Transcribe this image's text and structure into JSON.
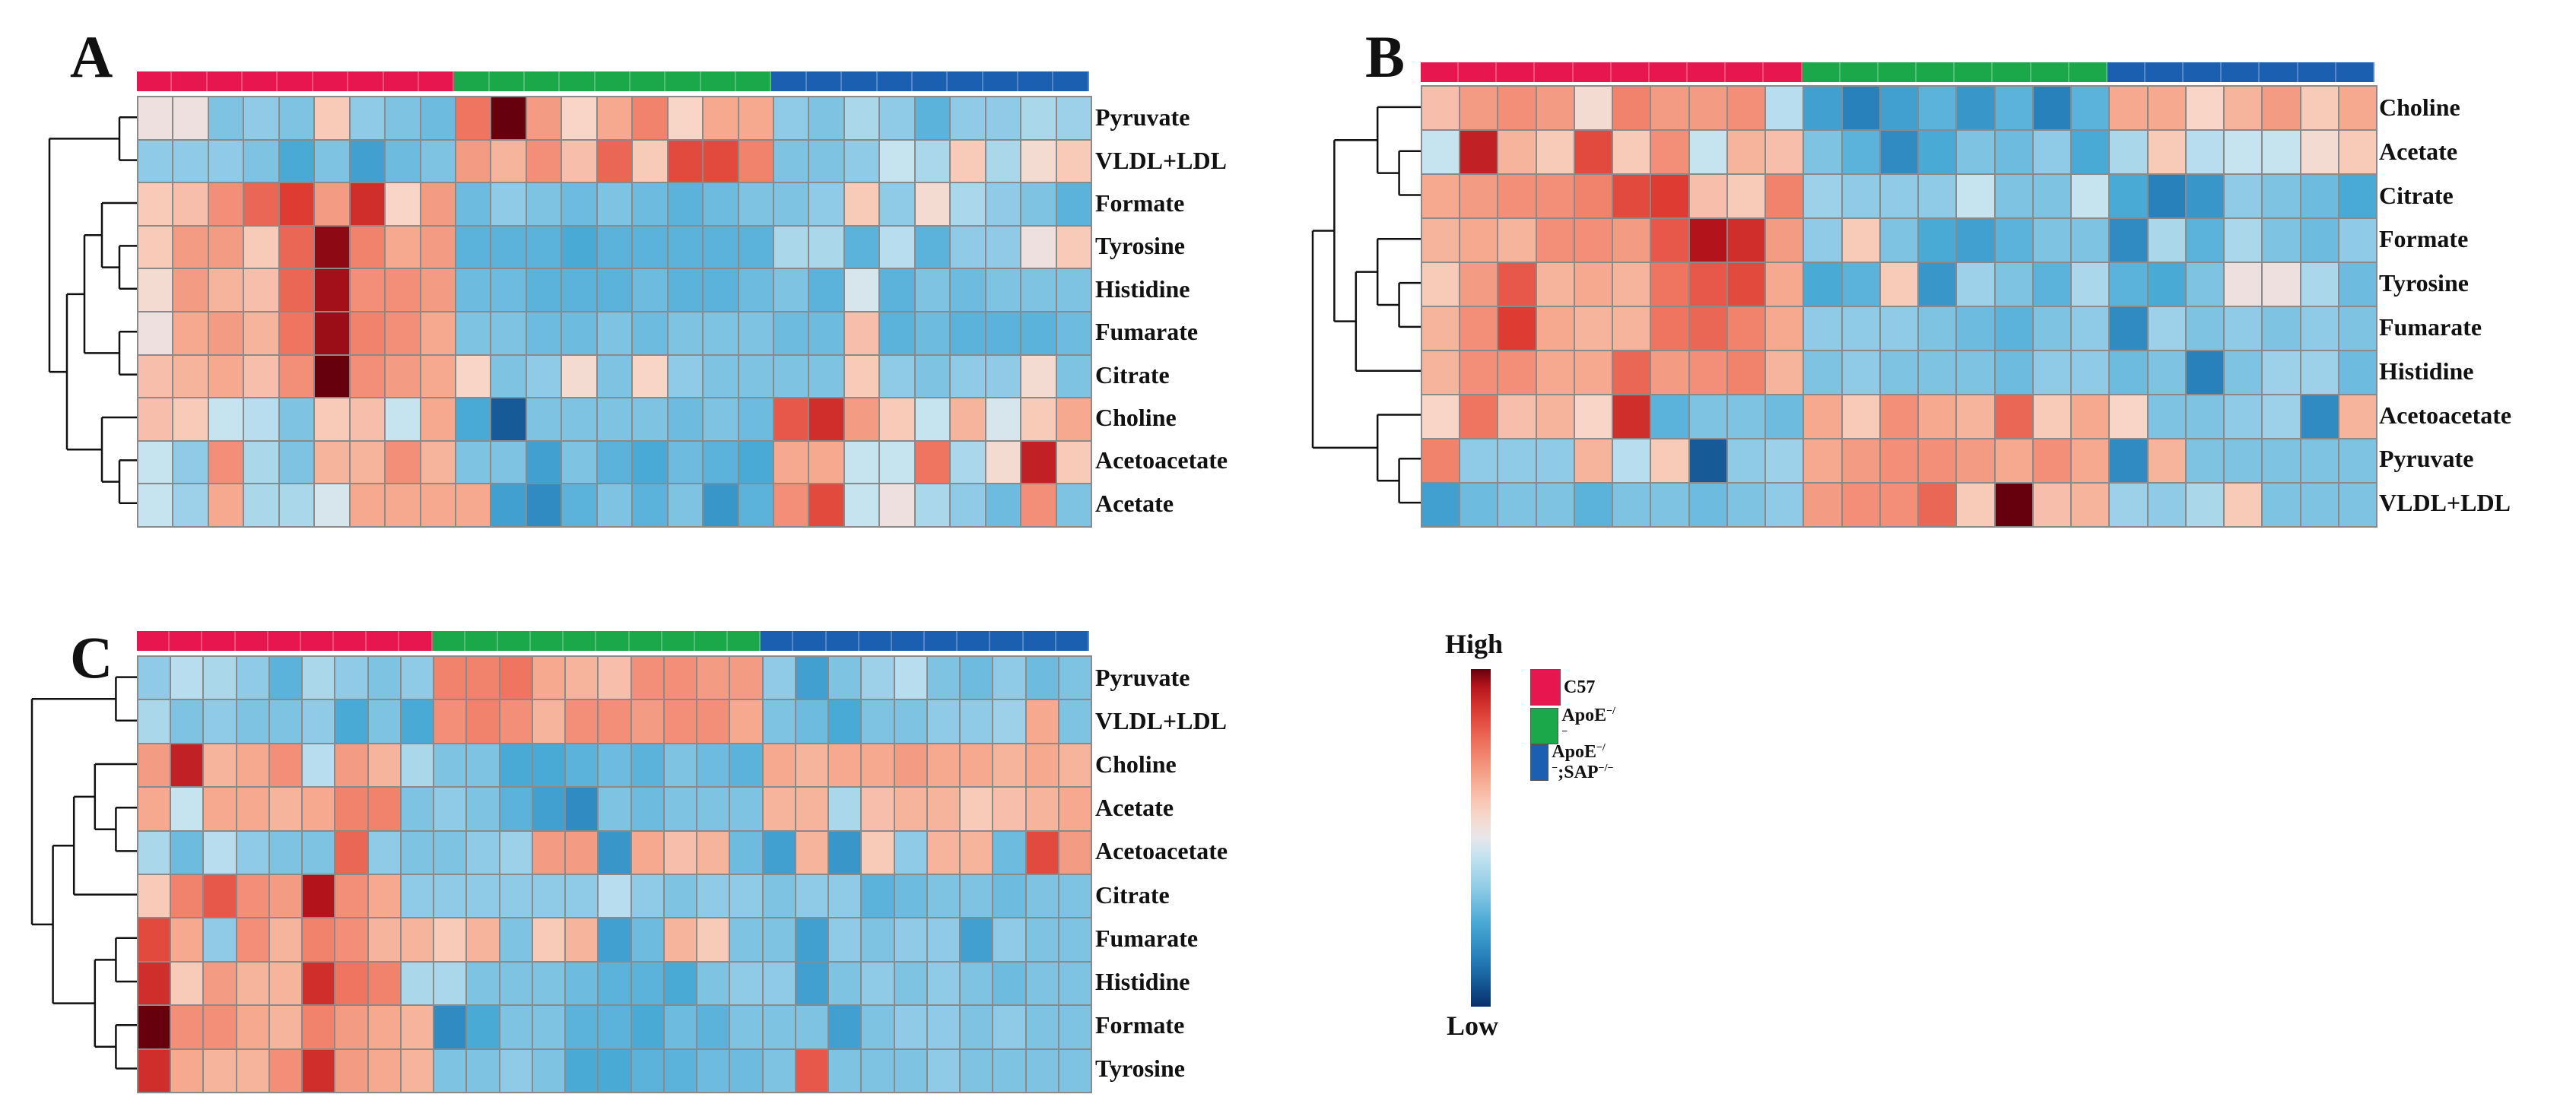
{
  "colors": {
    "C57": "#e8164f",
    "ApoE": "#1aa84a",
    "ApoE_SAP": "#1b5fb0",
    "low": "#08306b",
    "mid": "#e8e6ea",
    "high": "#67000d"
  },
  "legend": {
    "high_label": "High",
    "low_label": "Low",
    "groups": [
      {
        "key": "C57",
        "label": "C57",
        "sup": ""
      },
      {
        "key": "ApoE",
        "label": "ApoE",
        "sup": "−/−"
      },
      {
        "key": "ApoE_SAP",
        "label": "ApoE",
        "sup": "−/−",
        "label2": ";SAP",
        "sup2": "−/−"
      }
    ]
  },
  "chart_data": [
    {
      "type": "heatmap",
      "panel": "A",
      "groups": [
        {
          "key": "C57",
          "n": 9
        },
        {
          "key": "ApoE",
          "n": 9
        },
        {
          "key": "ApoE_SAP",
          "n": 9
        }
      ],
      "rows": [
        "Pyruvate",
        "VLDL+LDL",
        "Formate",
        "Tyrosine",
        "Histidine",
        "Fumarate",
        "Citrate",
        "Choline",
        "Acetoacetate",
        "Acetate"
      ],
      "values": [
        [
          0.05,
          0.05,
          -0.35,
          -0.3,
          -0.35,
          0.2,
          -0.3,
          -0.35,
          -0.4,
          0.55,
          1.0,
          0.4,
          0.15,
          0.35,
          0.5,
          0.15,
          0.35,
          0.35,
          -0.3,
          -0.35,
          -0.2,
          -0.3,
          -0.45,
          -0.3,
          -0.3,
          -0.2,
          -0.25
        ],
        [
          -0.3,
          -0.3,
          -0.3,
          -0.35,
          -0.5,
          -0.35,
          -0.55,
          -0.4,
          -0.35,
          0.4,
          0.3,
          0.45,
          0.25,
          0.6,
          0.2,
          0.7,
          0.7,
          0.5,
          -0.35,
          -0.35,
          -0.3,
          -0.1,
          -0.2,
          0.2,
          -0.2,
          0.1,
          0.2
        ],
        [
          0.2,
          0.25,
          0.45,
          0.6,
          0.75,
          0.4,
          0.8,
          0.15,
          0.4,
          -0.4,
          -0.3,
          -0.35,
          -0.4,
          -0.35,
          -0.4,
          -0.45,
          -0.4,
          -0.35,
          -0.35,
          -0.3,
          0.2,
          -0.3,
          0.1,
          -0.2,
          -0.3,
          -0.35,
          -0.45
        ],
        [
          0.2,
          0.4,
          0.4,
          0.2,
          0.6,
          0.95,
          0.5,
          0.35,
          0.4,
          -0.45,
          -0.45,
          -0.45,
          -0.5,
          -0.45,
          -0.45,
          -0.45,
          -0.45,
          -0.45,
          -0.2,
          -0.2,
          -0.45,
          -0.15,
          -0.45,
          -0.3,
          -0.3,
          0.05,
          0.2
        ],
        [
          0.1,
          0.4,
          0.3,
          0.25,
          0.6,
          0.92,
          0.45,
          0.45,
          0.4,
          -0.4,
          -0.4,
          -0.45,
          -0.45,
          -0.45,
          -0.4,
          -0.45,
          -0.45,
          -0.4,
          -0.35,
          -0.45,
          -0.05,
          -0.45,
          -0.35,
          -0.4,
          -0.35,
          -0.35,
          -0.35
        ],
        [
          0.05,
          0.35,
          0.4,
          0.3,
          0.55,
          0.93,
          0.5,
          0.45,
          0.35,
          -0.35,
          -0.35,
          -0.4,
          -0.4,
          -0.35,
          -0.4,
          -0.35,
          -0.35,
          -0.35,
          -0.4,
          -0.4,
          0.25,
          -0.45,
          -0.4,
          -0.45,
          -0.45,
          -0.45,
          -0.4
        ],
        [
          0.25,
          0.3,
          0.35,
          0.25,
          0.45,
          1.0,
          0.45,
          0.4,
          0.35,
          0.15,
          -0.35,
          -0.3,
          0.1,
          -0.35,
          0.15,
          -0.3,
          -0.35,
          -0.35,
          -0.35,
          -0.35,
          0.2,
          -0.3,
          -0.35,
          -0.3,
          -0.3,
          0.1,
          -0.35
        ],
        [
          0.25,
          0.2,
          -0.1,
          -0.15,
          -0.35,
          0.2,
          0.25,
          -0.1,
          0.35,
          -0.5,
          -0.85,
          -0.35,
          -0.35,
          -0.35,
          -0.35,
          -0.4,
          -0.35,
          -0.4,
          0.65,
          0.8,
          0.4,
          0.2,
          -0.1,
          0.3,
          -0.05,
          0.2,
          0.35
        ],
        [
          -0.1,
          -0.3,
          0.45,
          -0.2,
          -0.35,
          0.3,
          0.3,
          0.45,
          0.3,
          -0.35,
          -0.35,
          -0.55,
          -0.35,
          -0.45,
          -0.5,
          -0.4,
          -0.45,
          -0.5,
          0.35,
          0.35,
          -0.1,
          -0.1,
          0.55,
          -0.2,
          0.1,
          0.85,
          0.2
        ],
        [
          -0.1,
          -0.25,
          0.35,
          -0.2,
          -0.2,
          -0.05,
          0.35,
          0.35,
          0.35,
          0.35,
          -0.55,
          -0.65,
          -0.45,
          -0.35,
          -0.45,
          -0.35,
          -0.6,
          -0.45,
          0.45,
          0.7,
          -0.1,
          0.05,
          -0.2,
          -0.3,
          -0.4,
          0.45,
          -0.35
        ]
      ]
    },
    {
      "type": "heatmap",
      "panel": "B",
      "groups": [
        {
          "key": "C57",
          "n": 10
        },
        {
          "key": "ApoE",
          "n": 8
        },
        {
          "key": "ApoE_SAP",
          "n": 7
        }
      ],
      "rows": [
        "Choline",
        "Acetate",
        "Citrate",
        "Formate",
        "Tyrosine",
        "Fumarate",
        "Histidine",
        "Acetoacetate",
        "Pyruvate",
        "VLDL+LDL"
      ],
      "values": [
        [
          0.25,
          0.4,
          0.45,
          0.4,
          0.1,
          0.5,
          0.4,
          0.4,
          0.45,
          -0.15,
          -0.55,
          -0.7,
          -0.55,
          -0.45,
          -0.6,
          -0.45,
          -0.7,
          -0.45,
          0.35,
          0.35,
          0.15,
          0.3,
          0.4,
          0.2,
          0.35
        ],
        [
          -0.1,
          0.85,
          0.3,
          0.2,
          0.7,
          0.2,
          0.45,
          -0.1,
          0.3,
          0.25,
          -0.35,
          -0.45,
          -0.65,
          -0.5,
          -0.35,
          -0.4,
          -0.3,
          -0.5,
          -0.2,
          0.2,
          -0.15,
          -0.1,
          -0.1,
          0.1,
          0.2
        ],
        [
          0.35,
          0.4,
          0.45,
          0.45,
          0.5,
          0.7,
          0.75,
          0.25,
          0.2,
          0.5,
          -0.25,
          -0.3,
          -0.3,
          -0.3,
          -0.1,
          -0.35,
          -0.35,
          -0.1,
          -0.5,
          -0.7,
          -0.6,
          -0.3,
          -0.35,
          -0.4,
          -0.5
        ],
        [
          0.3,
          0.35,
          0.3,
          0.45,
          0.45,
          0.4,
          0.65,
          0.9,
          0.8,
          0.4,
          -0.3,
          0.2,
          -0.35,
          -0.5,
          -0.55,
          -0.45,
          -0.35,
          -0.35,
          -0.65,
          -0.2,
          -0.45,
          -0.2,
          -0.35,
          -0.4,
          -0.3
        ],
        [
          0.2,
          0.4,
          0.65,
          0.3,
          0.35,
          0.3,
          0.55,
          0.65,
          0.7,
          0.35,
          -0.5,
          -0.45,
          0.2,
          -0.6,
          -0.25,
          -0.35,
          -0.45,
          -0.2,
          -0.45,
          -0.5,
          -0.35,
          0.05,
          0.05,
          -0.2,
          -0.4
        ],
        [
          0.3,
          0.45,
          0.75,
          0.35,
          0.3,
          0.3,
          0.55,
          0.6,
          0.5,
          0.35,
          -0.3,
          -0.3,
          -0.3,
          -0.35,
          -0.4,
          -0.45,
          -0.35,
          -0.3,
          -0.65,
          -0.25,
          -0.35,
          -0.3,
          -0.35,
          -0.3,
          -0.35
        ],
        [
          0.3,
          0.45,
          0.45,
          0.35,
          0.35,
          0.6,
          0.4,
          0.45,
          0.5,
          0.3,
          -0.35,
          -0.3,
          -0.35,
          -0.35,
          -0.35,
          -0.4,
          -0.3,
          -0.3,
          -0.4,
          -0.35,
          -0.7,
          -0.35,
          -0.25,
          -0.25,
          -0.4
        ],
        [
          0.15,
          0.55,
          0.25,
          0.3,
          0.15,
          0.8,
          -0.45,
          -0.35,
          -0.35,
          -0.4,
          0.35,
          0.2,
          0.45,
          0.35,
          0.3,
          0.6,
          0.2,
          0.35,
          0.15,
          -0.35,
          -0.35,
          -0.3,
          -0.25,
          -0.65,
          0.3
        ],
        [
          0.5,
          -0.3,
          -0.3,
          -0.3,
          0.3,
          -0.15,
          0.2,
          -0.85,
          -0.3,
          -0.25,
          0.35,
          0.4,
          0.45,
          0.45,
          0.4,
          0.35,
          0.45,
          0.35,
          -0.65,
          0.3,
          -0.35,
          -0.35,
          -0.35,
          -0.35,
          -0.35
        ],
        [
          -0.55,
          -0.4,
          -0.35,
          -0.35,
          -0.45,
          -0.35,
          -0.35,
          -0.4,
          -0.35,
          -0.3,
          0.4,
          0.45,
          0.45,
          0.6,
          0.2,
          1.0,
          0.25,
          0.3,
          -0.25,
          -0.3,
          -0.2,
          0.2,
          -0.35,
          -0.35,
          -0.35
        ]
      ]
    },
    {
      "type": "heatmap",
      "panel": "C",
      "groups": [
        {
          "key": "C57",
          "n": 9
        },
        {
          "key": "ApoE",
          "n": 10
        },
        {
          "key": "ApoE_SAP",
          "n": 10
        }
      ],
      "rows": [
        "Pyruvate",
        "VLDL+LDL",
        "Choline",
        "Acetate",
        "Acetoacetate",
        "Citrate",
        "Fumarate",
        "Histidine",
        "Formate",
        "Tyrosine"
      ],
      "values": [
        [
          -0.3,
          -0.15,
          -0.2,
          -0.3,
          -0.45,
          -0.2,
          -0.3,
          -0.35,
          -0.3,
          0.5,
          0.5,
          0.55,
          0.35,
          0.3,
          0.25,
          0.45,
          0.45,
          0.4,
          0.4,
          -0.3,
          -0.55,
          -0.35,
          -0.25,
          -0.15,
          -0.35,
          -0.4,
          -0.3,
          -0.4,
          -0.35
        ],
        [
          -0.2,
          -0.35,
          -0.3,
          -0.35,
          -0.35,
          -0.3,
          -0.5,
          -0.35,
          -0.5,
          0.45,
          0.5,
          0.45,
          0.3,
          0.45,
          0.45,
          0.4,
          0.45,
          0.45,
          0.35,
          -0.35,
          -0.4,
          -0.5,
          -0.35,
          -0.35,
          -0.3,
          -0.3,
          -0.25,
          0.35,
          -0.35
        ],
        [
          0.4,
          0.85,
          0.3,
          0.35,
          0.45,
          -0.15,
          0.4,
          0.3,
          -0.2,
          -0.35,
          -0.35,
          -0.5,
          -0.5,
          -0.45,
          -0.4,
          -0.45,
          -0.35,
          -0.4,
          -0.45,
          0.35,
          0.3,
          0.35,
          0.35,
          0.4,
          0.35,
          0.35,
          0.3,
          0.35,
          0.3
        ],
        [
          0.35,
          -0.1,
          0.35,
          0.35,
          0.3,
          0.35,
          0.5,
          0.5,
          -0.35,
          -0.3,
          -0.35,
          -0.45,
          -0.55,
          -0.65,
          -0.35,
          -0.4,
          -0.35,
          -0.35,
          -0.35,
          0.3,
          0.3,
          -0.2,
          0.25,
          0.3,
          0.3,
          0.2,
          0.25,
          0.3,
          0.35
        ],
        [
          -0.2,
          -0.4,
          -0.15,
          -0.3,
          -0.35,
          -0.35,
          0.6,
          -0.3,
          -0.35,
          -0.35,
          -0.3,
          -0.25,
          0.4,
          0.4,
          -0.6,
          0.35,
          0.25,
          0.3,
          -0.4,
          -0.55,
          0.3,
          -0.6,
          0.2,
          -0.3,
          0.3,
          0.3,
          -0.4,
          0.7,
          0.4
        ],
        [
          0.2,
          0.5,
          0.65,
          0.45,
          0.4,
          0.9,
          0.45,
          0.35,
          -0.3,
          -0.3,
          -0.3,
          -0.3,
          -0.3,
          -0.3,
          -0.15,
          -0.3,
          -0.35,
          -0.3,
          -0.3,
          -0.35,
          -0.3,
          -0.3,
          -0.45,
          -0.4,
          -0.35,
          -0.35,
          -0.4,
          -0.35,
          -0.35
        ],
        [
          0.7,
          0.35,
          -0.3,
          0.45,
          0.3,
          0.5,
          0.45,
          0.3,
          0.3,
          0.2,
          0.3,
          -0.35,
          0.2,
          0.3,
          -0.55,
          -0.4,
          0.3,
          0.2,
          -0.35,
          -0.35,
          -0.55,
          -0.3,
          -0.35,
          -0.3,
          -0.3,
          -0.55,
          -0.3,
          -0.35,
          -0.35
        ],
        [
          0.8,
          0.2,
          0.4,
          0.3,
          0.3,
          0.8,
          0.55,
          0.5,
          -0.2,
          -0.2,
          -0.35,
          -0.35,
          -0.35,
          -0.4,
          -0.45,
          -0.45,
          -0.5,
          -0.35,
          -0.3,
          -0.3,
          -0.55,
          -0.35,
          -0.3,
          -0.35,
          -0.3,
          -0.35,
          -0.4,
          -0.35,
          -0.35
        ],
        [
          1.0,
          0.45,
          0.45,
          0.35,
          0.3,
          0.5,
          0.4,
          0.35,
          0.3,
          -0.65,
          -0.5,
          -0.35,
          -0.35,
          -0.45,
          -0.45,
          -0.5,
          -0.4,
          -0.45,
          -0.35,
          -0.35,
          -0.35,
          -0.55,
          -0.35,
          -0.3,
          -0.3,
          -0.35,
          -0.3,
          -0.35,
          -0.35
        ],
        [
          0.8,
          0.35,
          0.3,
          0.3,
          0.45,
          0.8,
          0.4,
          0.35,
          0.3,
          -0.35,
          -0.35,
          -0.3,
          -0.35,
          -0.5,
          -0.5,
          -0.45,
          -0.45,
          -0.4,
          -0.4,
          -0.35,
          0.65,
          -0.35,
          -0.35,
          -0.35,
          -0.3,
          -0.35,
          -0.35,
          -0.35,
          -0.35
        ]
      ]
    }
  ]
}
